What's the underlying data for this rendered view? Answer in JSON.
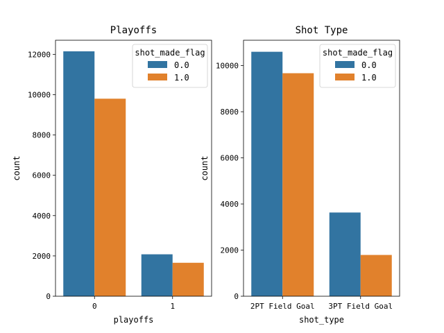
{
  "chart_data": [
    {
      "type": "bar",
      "title": "Playoffs",
      "xlabel": "playoffs",
      "ylabel": "count",
      "categories": [
        "0",
        "1"
      ],
      "ylim": [
        0,
        12700
      ],
      "yticks": [
        0,
        2000,
        4000,
        6000,
        8000,
        10000,
        12000
      ],
      "legend": {
        "title": "shot_made_flag",
        "placement": "top-right"
      },
      "series": [
        {
          "name": "0.0",
          "color": "#3274a1",
          "values": [
            12150,
            2080
          ]
        },
        {
          "name": "1.0",
          "color": "#e1812c",
          "values": [
            9800,
            1660
          ]
        }
      ]
    },
    {
      "type": "bar",
      "title": "Shot Type",
      "xlabel": "shot_type",
      "ylabel": "count",
      "categories": [
        "2PT Field Goal",
        "3PT Field Goal"
      ],
      "ylim": [
        0,
        11100
      ],
      "yticks": [
        0,
        2000,
        4000,
        6000,
        8000,
        10000
      ],
      "legend": {
        "title": "shot_made_flag",
        "placement": "top-right"
      },
      "series": [
        {
          "name": "0.0",
          "color": "#3274a1",
          "values": [
            10600,
            3630
          ]
        },
        {
          "name": "1.0",
          "color": "#e1812c",
          "values": [
            9670,
            1790
          ]
        }
      ]
    }
  ]
}
